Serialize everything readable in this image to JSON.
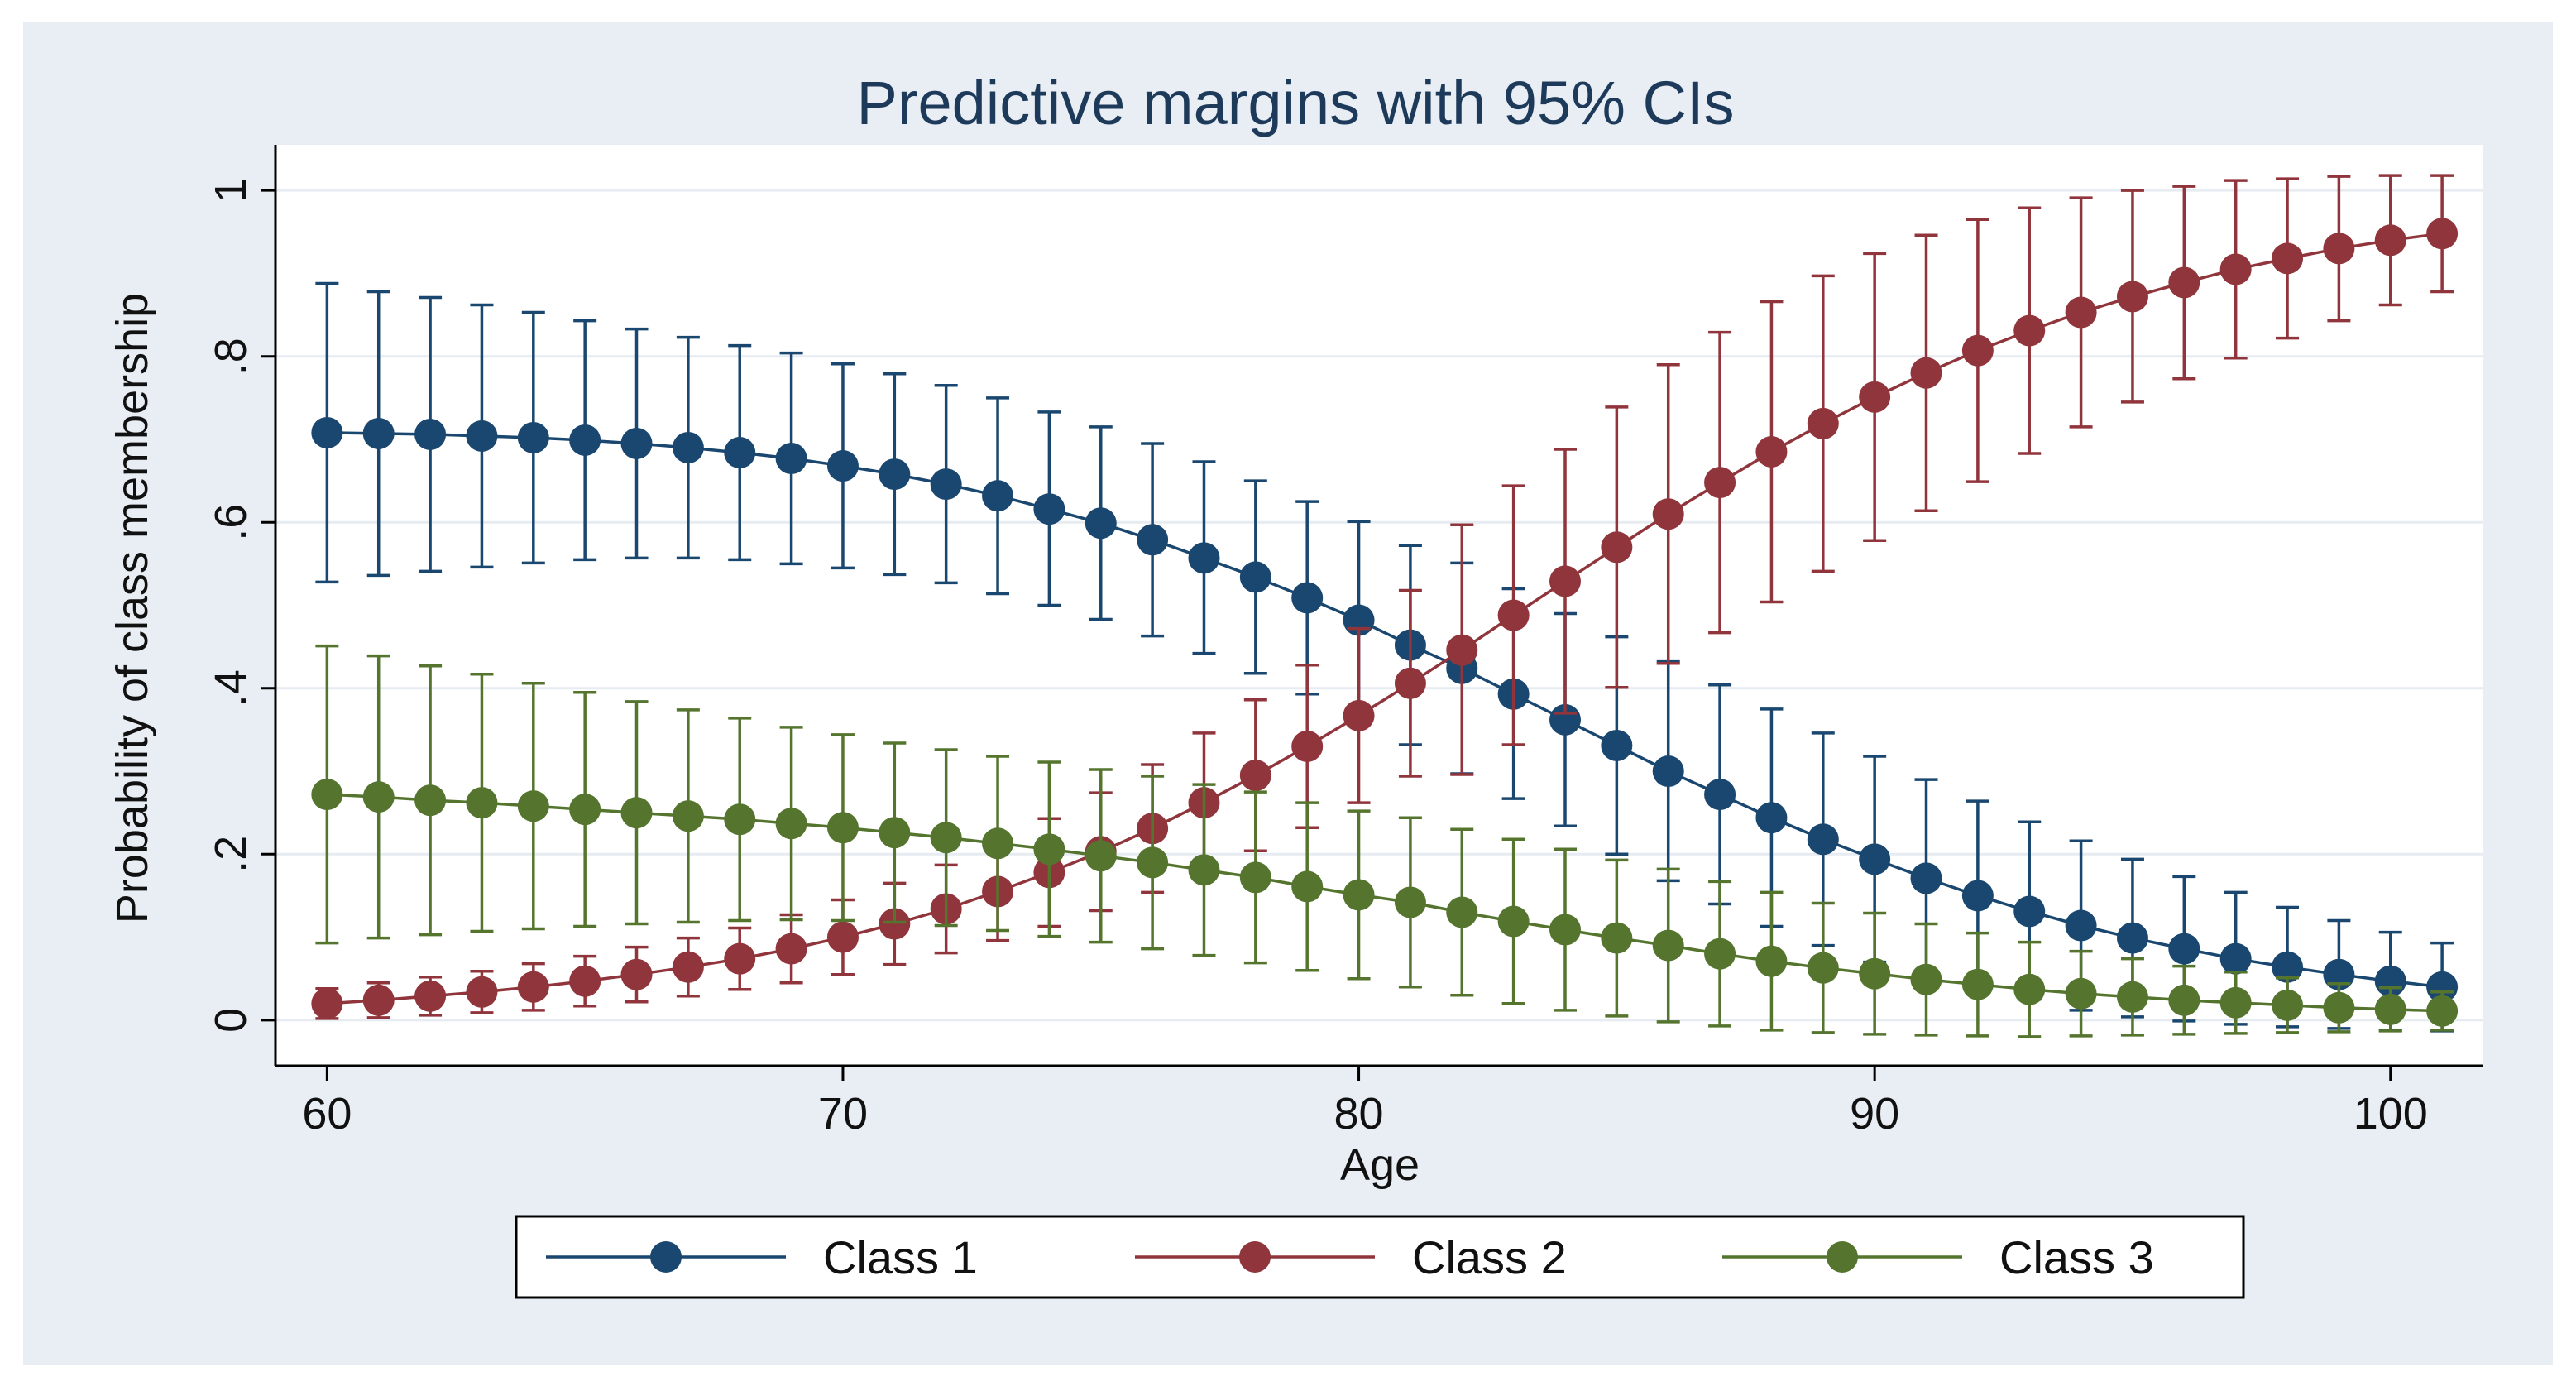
{
  "colors": {
    "outer_background": "#e8eef4",
    "plot_background": "#ffffff",
    "gridline": "#e6ecf1",
    "axis": "#000000",
    "title": "#1e3a5a"
  },
  "chart_data": {
    "type": "line",
    "title": "Predictive margins with 95% CIs",
    "xlabel": "Age",
    "ylabel": "Probability of class membership",
    "xlim": [
      59,
      101.8
    ],
    "ylim": [
      -0.055,
      1.055
    ],
    "x_ticks": [
      60,
      70,
      80,
      90,
      100
    ],
    "x_tick_labels": [
      "60",
      "70",
      "80",
      "90",
      "100"
    ],
    "y_ticks": [
      0,
      0.2,
      0.4,
      0.6,
      0.8,
      1
    ],
    "y_tick_labels": [
      "0",
      ".2",
      ".4",
      ".6",
      ".8",
      "1"
    ],
    "grid": true,
    "legend_position": "bottom",
    "x": [
      60,
      61,
      62,
      63,
      64,
      65,
      66,
      67,
      68,
      69,
      70,
      71,
      72,
      73,
      74,
      75,
      76,
      77,
      78,
      79,
      80,
      81,
      82,
      83,
      84,
      85,
      86,
      87,
      88,
      89,
      90,
      91,
      92,
      93,
      94,
      95,
      96,
      97,
      98,
      99,
      100,
      101
    ],
    "series": [
      {
        "name": "Class 1",
        "color": "#1a476f",
        "values": [
          0.708,
          0.707,
          0.706,
          0.704,
          0.702,
          0.699,
          0.695,
          0.69,
          0.684,
          0.677,
          0.668,
          0.658,
          0.646,
          0.632,
          0.616,
          0.599,
          0.579,
          0.557,
          0.534,
          0.509,
          0.482,
          0.452,
          0.424,
          0.393,
          0.362,
          0.331,
          0.3,
          0.272,
          0.244,
          0.218,
          0.194,
          0.171,
          0.15,
          0.131,
          0.114,
          0.099,
          0.086,
          0.074,
          0.064,
          0.055,
          0.047,
          0.04
        ],
        "lower": [
          0.528,
          0.536,
          0.541,
          0.546,
          0.551,
          0.555,
          0.557,
          0.557,
          0.555,
          0.55,
          0.545,
          0.537,
          0.527,
          0.514,
          0.5,
          0.483,
          0.463,
          0.442,
          0.418,
          0.393,
          0.363,
          0.332,
          0.297,
          0.267,
          0.234,
          0.2,
          0.168,
          0.14,
          0.113,
          0.09,
          0.07,
          0.053,
          0.037,
          0.025,
          0.012,
          0.004,
          -0.001,
          -0.005,
          -0.008,
          -0.01,
          -0.012,
          -0.013
        ],
        "upper": [
          0.888,
          0.878,
          0.871,
          0.862,
          0.853,
          0.843,
          0.833,
          0.823,
          0.813,
          0.804,
          0.791,
          0.779,
          0.765,
          0.75,
          0.733,
          0.715,
          0.695,
          0.673,
          0.65,
          0.625,
          0.601,
          0.572,
          0.551,
          0.52,
          0.49,
          0.462,
          0.432,
          0.404,
          0.375,
          0.346,
          0.318,
          0.29,
          0.264,
          0.239,
          0.216,
          0.194,
          0.173,
          0.154,
          0.136,
          0.12,
          0.106,
          0.093
        ]
      },
      {
        "name": "Class 2",
        "color": "#90353b",
        "values": [
          0.02,
          0.024,
          0.029,
          0.034,
          0.04,
          0.047,
          0.055,
          0.064,
          0.074,
          0.086,
          0.1,
          0.116,
          0.134,
          0.155,
          0.178,
          0.203,
          0.231,
          0.262,
          0.295,
          0.33,
          0.367,
          0.406,
          0.446,
          0.488,
          0.529,
          0.57,
          0.61,
          0.648,
          0.685,
          0.719,
          0.751,
          0.78,
          0.807,
          0.831,
          0.853,
          0.872,
          0.889,
          0.905,
          0.918,
          0.93,
          0.94,
          0.948
        ],
        "lower": [
          0.002,
          0.003,
          0.006,
          0.009,
          0.012,
          0.017,
          0.022,
          0.029,
          0.037,
          0.045,
          0.055,
          0.067,
          0.081,
          0.096,
          0.113,
          0.132,
          0.154,
          0.178,
          0.204,
          0.232,
          0.262,
          0.294,
          0.296,
          0.332,
          0.37,
          0.401,
          0.43,
          0.467,
          0.504,
          0.541,
          0.578,
          0.614,
          0.649,
          0.683,
          0.715,
          0.745,
          0.773,
          0.798,
          0.822,
          0.843,
          0.862,
          0.878
        ],
        "upper": [
          0.038,
          0.045,
          0.052,
          0.059,
          0.068,
          0.077,
          0.088,
          0.099,
          0.111,
          0.127,
          0.145,
          0.165,
          0.187,
          0.214,
          0.243,
          0.274,
          0.308,
          0.346,
          0.386,
          0.428,
          0.472,
          0.518,
          0.597,
          0.644,
          0.688,
          0.739,
          0.79,
          0.829,
          0.866,
          0.897,
          0.924,
          0.946,
          0.965,
          0.979,
          0.991,
          1.0,
          1.005,
          1.012,
          1.014,
          1.017,
          1.018,
          1.018
        ]
      },
      {
        "name": "Class 3",
        "color": "#55752f",
        "values": [
          0.272,
          0.269,
          0.265,
          0.262,
          0.258,
          0.254,
          0.25,
          0.246,
          0.242,
          0.237,
          0.232,
          0.226,
          0.22,
          0.213,
          0.206,
          0.198,
          0.19,
          0.181,
          0.172,
          0.161,
          0.151,
          0.142,
          0.13,
          0.119,
          0.109,
          0.099,
          0.09,
          0.08,
          0.071,
          0.063,
          0.056,
          0.049,
          0.043,
          0.037,
          0.032,
          0.028,
          0.024,
          0.021,
          0.018,
          0.015,
          0.013,
          0.011
        ],
        "lower": [
          0.093,
          0.099,
          0.103,
          0.107,
          0.11,
          0.113,
          0.116,
          0.118,
          0.12,
          0.121,
          0.12,
          0.118,
          0.114,
          0.108,
          0.101,
          0.094,
          0.086,
          0.078,
          0.069,
          0.06,
          0.05,
          0.04,
          0.03,
          0.02,
          0.012,
          0.005,
          -0.002,
          -0.007,
          -0.012,
          -0.015,
          -0.017,
          -0.018,
          -0.019,
          -0.02,
          -0.019,
          -0.018,
          -0.017,
          -0.016,
          -0.015,
          -0.014,
          -0.013,
          -0.012
        ],
        "upper": [
          0.451,
          0.439,
          0.427,
          0.417,
          0.406,
          0.395,
          0.384,
          0.374,
          0.364,
          0.353,
          0.344,
          0.334,
          0.326,
          0.318,
          0.311,
          0.302,
          0.294,
          0.284,
          0.275,
          0.262,
          0.252,
          0.244,
          0.23,
          0.218,
          0.206,
          0.193,
          0.182,
          0.167,
          0.154,
          0.141,
          0.129,
          0.116,
          0.105,
          0.094,
          0.083,
          0.074,
          0.065,
          0.058,
          0.051,
          0.044,
          0.039,
          0.034
        ]
      }
    ]
  }
}
